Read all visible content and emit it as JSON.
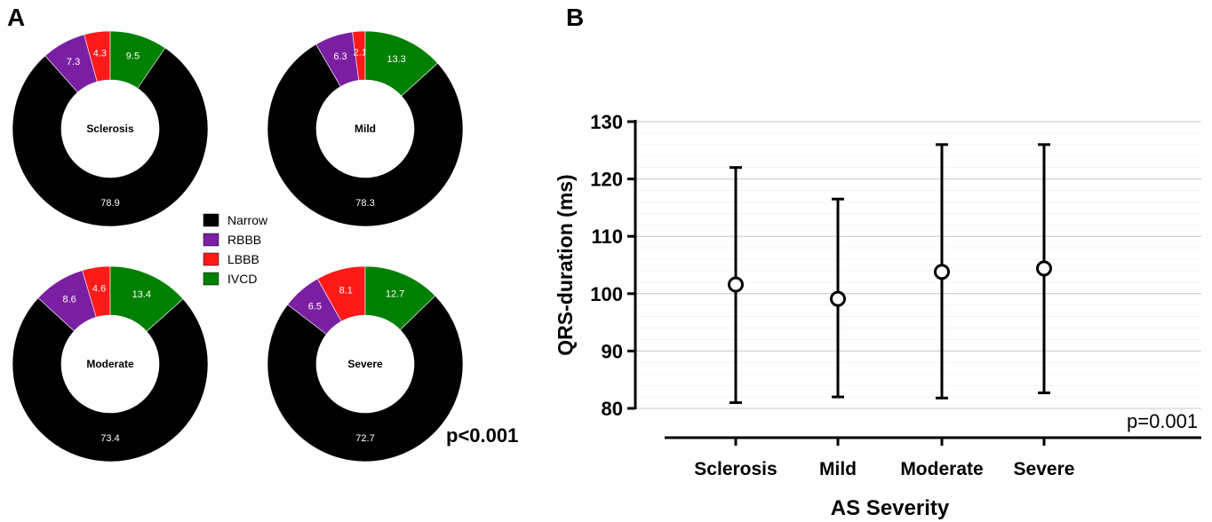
{
  "panels": {
    "a_label": "A",
    "b_label": "B"
  },
  "colors": {
    "Narrow": "#000000",
    "RBBB": "#7b1fa2",
    "LBBB": "#ff1a1a",
    "IVCD": "#008000"
  },
  "chart_data": [
    {
      "type": "pie",
      "panel": "A",
      "legend": [
        "Narrow",
        "RBBB",
        "LBBB",
        "IVCD"
      ],
      "p_value": "p<0.001",
      "donuts": [
        {
          "name": "Sclerosis",
          "values": {
            "Narrow": 78.9,
            "RBBB": 7.3,
            "LBBB": 4.3,
            "IVCD": 9.5
          },
          "labels": {
            "Narrow": "78.9",
            "RBBB": "7.3",
            "LBBB": "4.3",
            "IVCD": "9.5"
          }
        },
        {
          "name": "Mild",
          "values": {
            "Narrow": 78.3,
            "RBBB": 6.3,
            "LBBB": 2.1,
            "IVCD": 13.3
          },
          "labels": {
            "Narrow": "78.3",
            "RBBB": "6.3",
            "LBBB": "2.1",
            "IVCD": "13.3"
          }
        },
        {
          "name": "Moderate",
          "values": {
            "Narrow": 73.4,
            "RBBB": 8.6,
            "LBBB": 4.6,
            "IVCD": 13.4
          },
          "labels": {
            "Narrow": "73.4",
            "RBBB": "8.6",
            "LBBB": "4.6",
            "IVCD": "13.4"
          }
        },
        {
          "name": "Severe",
          "values": {
            "Narrow": 72.7,
            "RBBB": 6.5,
            "LBBB": 8.1,
            "IVCD": 12.7
          },
          "labels": {
            "Narrow": "72.7",
            "RBBB": "6.5",
            "LBBB": "8.1",
            "IVCD": "12.7"
          }
        }
      ]
    },
    {
      "type": "scatter",
      "panel": "B",
      "categories": [
        "Sclerosis",
        "Mild",
        "Moderate",
        "Severe"
      ],
      "mean": [
        101.6,
        99.1,
        103.8,
        104.4
      ],
      "upper": [
        122,
        116.5,
        126,
        126
      ],
      "lower": [
        81,
        82,
        81.8,
        82.7
      ],
      "ylabel": "QRS-duration (ms)",
      "xlabel": "AS Severity",
      "ylim": [
        80,
        130
      ],
      "yticks": [
        "80",
        "90",
        "100",
        "110",
        "120",
        "130"
      ],
      "grid": true,
      "p_value": "p=0.001"
    }
  ]
}
